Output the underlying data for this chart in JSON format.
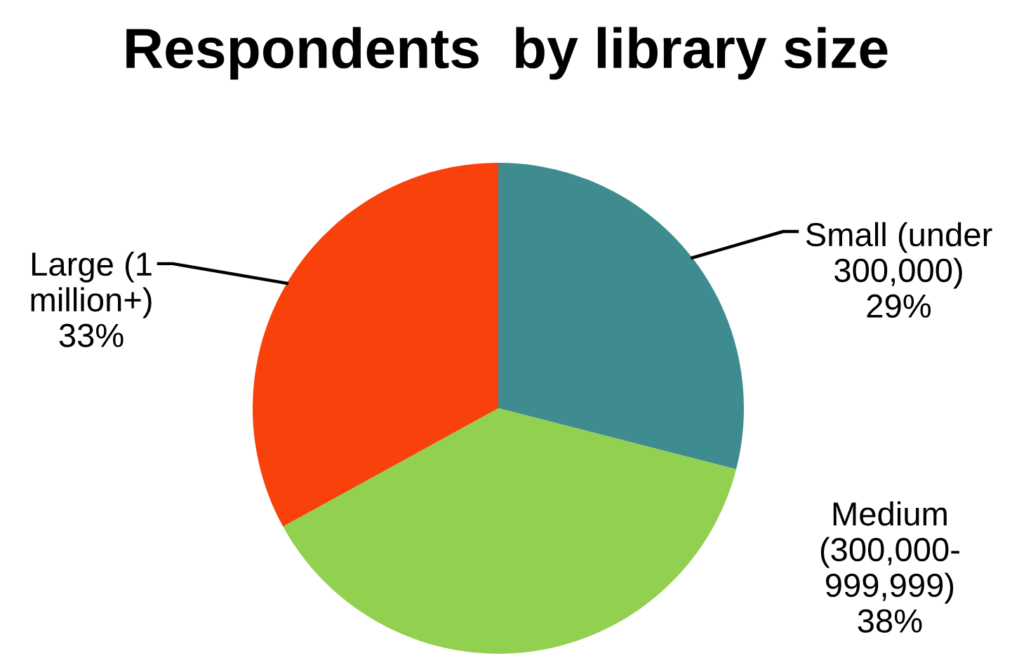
{
  "chart_data": {
    "type": "pie",
    "title": "Respondents  by library size",
    "categories": [
      "Small (under\n300,000)",
      "Medium\n(300,000-\n999,999)",
      "Large (1\nmillion+)"
    ],
    "values": [
      29,
      38,
      33
    ],
    "colors": [
      "#3f8c90",
      "#92d050",
      "#f9420b"
    ],
    "value_labels": [
      "29%",
      "38%",
      "33%"
    ]
  }
}
